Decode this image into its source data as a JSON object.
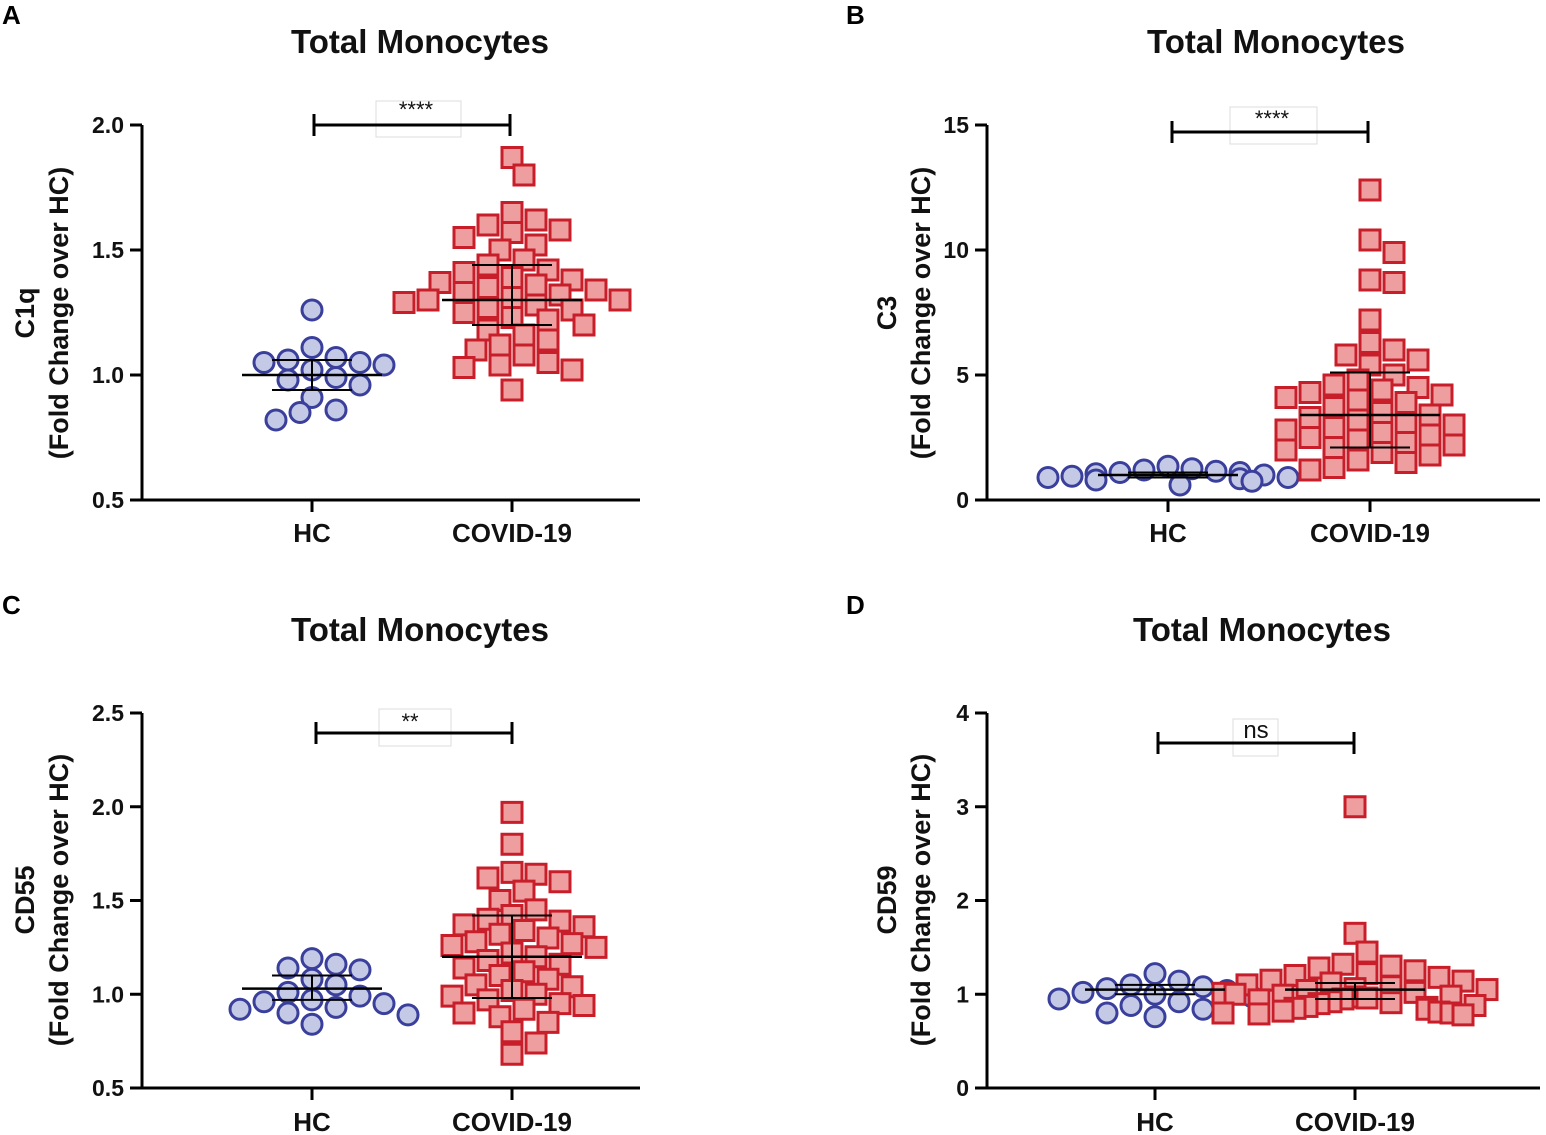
{
  "colors": {
    "hc_fill": "#c4c9e6",
    "hc_stroke": "#3a3f9c",
    "covid_fill": "#ef9ea0",
    "covid_stroke": "#c81e2a"
  },
  "chart_data": [
    {
      "panel_label": "A",
      "type": "scatter",
      "title": "Total Monocytes",
      "ylabel": "C1q",
      "ylabel2": "(Fold Change over HC)",
      "ylim": [
        0.5,
        2.0
      ],
      "yticks": [
        0.5,
        1.0,
        1.5,
        2.0
      ],
      "ytick_labels": [
        "0.5",
        "1.0",
        "1.5",
        "2.0"
      ],
      "categories": [
        "HC",
        "COVID-19"
      ],
      "significance": "****",
      "series": [
        {
          "name": "HC",
          "values": [
            1.26,
            1.11,
            1.07,
            1.06,
            1.05,
            1.05,
            1.04,
            1.02,
            0.99,
            0.98,
            0.96,
            0.91,
            0.86,
            0.85,
            0.82
          ]
        },
        {
          "name": "COVID-19",
          "values": [
            1.87,
            1.8,
            1.65,
            1.62,
            1.6,
            1.58,
            1.57,
            1.55,
            1.52,
            1.5,
            1.46,
            1.44,
            1.42,
            1.41,
            1.39,
            1.38,
            1.37,
            1.36,
            1.35,
            1.34,
            1.33,
            1.32,
            1.31,
            1.3,
            1.3,
            1.29,
            1.28,
            1.27,
            1.26,
            1.25,
            1.23,
            1.22,
            1.2,
            1.18,
            1.16,
            1.14,
            1.12,
            1.1,
            1.08,
            1.05,
            1.04,
            1.03,
            1.02,
            0.94
          ]
        }
      ],
      "summary": {
        "HC": {
          "center": 1.0,
          "upper": 1.06,
          "lower": 0.94
        },
        "COVID-19": {
          "center": 1.3,
          "upper": 1.44,
          "lower": 1.2
        }
      }
    },
    {
      "panel_label": "B",
      "type": "scatter",
      "title": "Total Monocytes",
      "ylabel": "C3",
      "ylabel2": "(Fold Change over HC)",
      "ylim": [
        0,
        15
      ],
      "yticks": [
        0,
        5,
        10,
        15
      ],
      "ytick_labels": [
        "0",
        "5",
        "10",
        "15"
      ],
      "categories": [
        "HC",
        "COVID-19"
      ],
      "significance": "****",
      "series": [
        {
          "name": "HC",
          "values": [
            1.35,
            1.25,
            1.2,
            1.15,
            1.1,
            1.1,
            1.05,
            1.0,
            0.95,
            0.9,
            0.9,
            0.85,
            0.8,
            0.75,
            0.6
          ]
        },
        {
          "name": "COVID-19",
          "values": [
            12.4,
            10.4,
            9.9,
            8.8,
            8.7,
            7.2,
            6.3,
            6.0,
            5.8,
            5.6,
            5.4,
            5.0,
            4.8,
            4.6,
            4.5,
            4.4,
            4.3,
            4.2,
            4.1,
            4.0,
            3.9,
            3.7,
            3.5,
            3.4,
            3.3,
            3.2,
            3.1,
            3.0,
            2.9,
            2.8,
            2.7,
            2.6,
            2.5,
            2.4,
            2.3,
            2.2,
            2.1,
            2.0,
            1.9,
            1.8,
            1.6,
            1.5,
            1.3,
            1.2
          ]
        }
      ],
      "summary": {
        "HC": {
          "center": 1.0,
          "upper": 1.1,
          "lower": 0.9
        },
        "COVID-19": {
          "center": 3.4,
          "upper": 5.1,
          "lower": 2.1
        }
      }
    },
    {
      "panel_label": "C",
      "type": "scatter",
      "title": "Total Monocytes",
      "ylabel": "CD55",
      "ylabel2": "(Fold Change over HC)",
      "ylim": [
        0.5,
        2.5
      ],
      "yticks": [
        0.5,
        1.0,
        1.5,
        2.0,
        2.5
      ],
      "ytick_labels": [
        "0.5",
        "1.0",
        "1.5",
        "2.0",
        "2.5"
      ],
      "categories": [
        "HC",
        "COVID-19"
      ],
      "significance": "**",
      "series": [
        {
          "name": "HC",
          "values": [
            1.19,
            1.16,
            1.14,
            1.13,
            1.08,
            1.05,
            1.01,
            0.99,
            0.97,
            0.96,
            0.95,
            0.93,
            0.92,
            0.9,
            0.89,
            0.84
          ]
        },
        {
          "name": "COVID-19",
          "values": [
            1.97,
            1.8,
            1.65,
            1.64,
            1.62,
            1.6,
            1.55,
            1.5,
            1.45,
            1.42,
            1.4,
            1.39,
            1.37,
            1.36,
            1.34,
            1.32,
            1.3,
            1.28,
            1.27,
            1.26,
            1.25,
            1.22,
            1.2,
            1.18,
            1.16,
            1.14,
            1.12,
            1.1,
            1.08,
            1.05,
            1.04,
            1.02,
            1.0,
            0.99,
            0.97,
            0.95,
            0.94,
            0.92,
            0.9,
            0.88,
            0.85,
            0.8,
            0.74,
            0.68
          ]
        }
      ],
      "summary": {
        "HC": {
          "center": 1.03,
          "upper": 1.1,
          "lower": 0.97
        },
        "COVID-19": {
          "center": 1.2,
          "upper": 1.42,
          "lower": 0.98
        }
      }
    },
    {
      "panel_label": "D",
      "type": "scatter",
      "title": "Total Monocytes",
      "ylabel": "CD59",
      "ylabel2": "(Fold Change over HC)",
      "ylim": [
        0,
        4
      ],
      "yticks": [
        0,
        1,
        2,
        3,
        4
      ],
      "ytick_labels": [
        "0",
        "1",
        "2",
        "3",
        "4"
      ],
      "categories": [
        "HC",
        "COVID-19"
      ],
      "significance": "ns",
      "series": [
        {
          "name": "HC",
          "values": [
            1.22,
            1.14,
            1.1,
            1.08,
            1.06,
            1.04,
            1.02,
            1.0,
            0.98,
            0.95,
            0.92,
            0.88,
            0.84,
            0.8,
            0.76
          ]
        },
        {
          "name": "COVID-19",
          "values": [
            3.0,
            1.65,
            1.45,
            1.32,
            1.3,
            1.28,
            1.25,
            1.22,
            1.2,
            1.18,
            1.15,
            1.14,
            1.12,
            1.1,
            1.08,
            1.06,
            1.05,
            1.04,
            1.02,
            1.01,
            1.0,
            0.99,
            0.98,
            0.97,
            0.96,
            0.95,
            0.94,
            0.92,
            0.91,
            0.9,
            0.88,
            0.87,
            0.86,
            0.85,
            0.84,
            0.82,
            0.81,
            0.8,
            0.8,
            0.79,
            0.78
          ]
        }
      ],
      "summary": {
        "HC": {
          "center": 1.05,
          "upper": 1.1,
          "lower": 1.0
        },
        "COVID-19": {
          "center": 1.05,
          "upper": 1.12,
          "lower": 0.95
        }
      }
    }
  ]
}
